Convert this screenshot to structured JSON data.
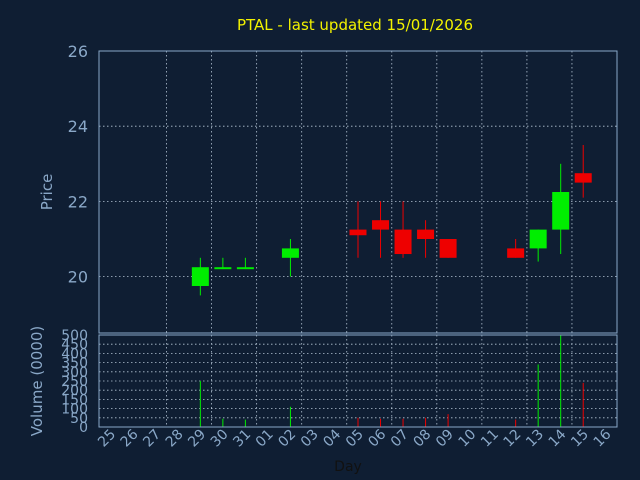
{
  "colors": {
    "background": "#0f1e33",
    "frame": "#8aa8c8",
    "grid": "#b4c4d4",
    "title": "#f2f200",
    "text": "#8aa8c8",
    "up": "#00ee00",
    "down": "#ee0000",
    "xlabel": "#111111"
  },
  "chart_data": [
    {
      "type": "candlestick",
      "title": "PTAL - last updated 15/01/2026",
      "ylabel": "Price",
      "ylim": [
        18.5,
        26
      ],
      "yticks": [
        20,
        22,
        24,
        26
      ],
      "grid": true,
      "categories": [
        "25",
        "26",
        "27",
        "28",
        "29",
        "30",
        "31",
        "01",
        "02",
        "03",
        "04",
        "05",
        "06",
        "07",
        "08",
        "09",
        "10",
        "11",
        "12",
        "13",
        "14",
        "15",
        "16"
      ],
      "candles": [
        {
          "day": "29",
          "open": 19.75,
          "close": 20.25,
          "high": 20.5,
          "low": 19.5
        },
        {
          "day": "30",
          "open": 20.2,
          "close": 20.25,
          "high": 20.5,
          "low": 20.2
        },
        {
          "day": "31",
          "open": 20.2,
          "close": 20.25,
          "high": 20.5,
          "low": 20.2
        },
        {
          "day": "02",
          "open": 20.5,
          "close": 20.75,
          "high": 21.0,
          "low": 20.0
        },
        {
          "day": "05",
          "open": 21.25,
          "close": 21.1,
          "high": 22.0,
          "low": 20.5
        },
        {
          "day": "06",
          "open": 21.5,
          "close": 21.25,
          "high": 22.0,
          "low": 20.5
        },
        {
          "day": "07",
          "open": 21.25,
          "close": 20.6,
          "high": 22.0,
          "low": 20.5
        },
        {
          "day": "08",
          "open": 21.25,
          "close": 21.0,
          "high": 21.5,
          "low": 20.5
        },
        {
          "day": "09",
          "open": 21.0,
          "close": 20.5,
          "high": 21.0,
          "low": 20.5
        },
        {
          "day": "12",
          "open": 20.75,
          "close": 20.5,
          "high": 21.0,
          "low": 20.5
        },
        {
          "day": "13",
          "open": 20.75,
          "close": 21.25,
          "high": 21.25,
          "low": 20.4
        },
        {
          "day": "14",
          "open": 21.25,
          "close": 22.25,
          "high": 23.0,
          "low": 20.6
        },
        {
          "day": "15",
          "open": 22.75,
          "close": 22.5,
          "high": 23.5,
          "low": 22.1
        }
      ]
    },
    {
      "type": "bar",
      "ylabel": "Volume (0000)",
      "xlabel": "Day",
      "ylim": [
        0,
        500
      ],
      "yticks": [
        0,
        50,
        100,
        150,
        200,
        250,
        300,
        350,
        400,
        450,
        500
      ],
      "grid": true,
      "categories": [
        "25",
        "26",
        "27",
        "28",
        "29",
        "30",
        "31",
        "01",
        "02",
        "03",
        "04",
        "05",
        "06",
        "07",
        "08",
        "09",
        "10",
        "11",
        "12",
        "13",
        "14",
        "15",
        "16"
      ],
      "bars": [
        {
          "day": "29",
          "value": 250,
          "direction": "up"
        },
        {
          "day": "30",
          "value": 45,
          "direction": "up"
        },
        {
          "day": "31",
          "value": 40,
          "direction": "up"
        },
        {
          "day": "02",
          "value": 110,
          "direction": "up"
        },
        {
          "day": "05",
          "value": 50,
          "direction": "down"
        },
        {
          "day": "06",
          "value": 45,
          "direction": "down"
        },
        {
          "day": "07",
          "value": 45,
          "direction": "down"
        },
        {
          "day": "08",
          "value": 50,
          "direction": "down"
        },
        {
          "day": "09",
          "value": 70,
          "direction": "down"
        },
        {
          "day": "12",
          "value": 40,
          "direction": "down"
        },
        {
          "day": "13",
          "value": 340,
          "direction": "up"
        },
        {
          "day": "14",
          "value": 500,
          "direction": "up"
        },
        {
          "day": "15",
          "value": 240,
          "direction": "down"
        }
      ]
    }
  ]
}
